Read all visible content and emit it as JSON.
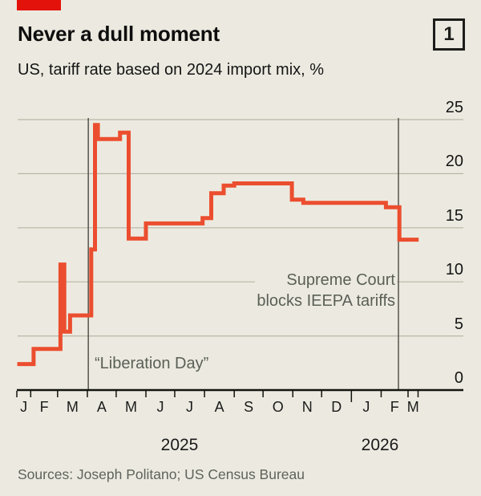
{
  "header": {
    "title": "Never a dull moment",
    "index_label": "1",
    "subtitle": "US, tariff rate based on 2024 import mix, %"
  },
  "footer": {
    "sources": "Sources: Joseph Politano; US Census Bureau"
  },
  "annotations": {
    "liberation_day": "“Liberation Day”",
    "supreme_line1": "Supreme Court",
    "supreme_line2": "blocks IEEPA tariffs"
  },
  "colors": {
    "background": "#ECEAE0",
    "brand_red": "#E3120B",
    "line_red": "#EB4E2F",
    "grid": "#b8b5a6",
    "axis": "#13130f",
    "event_line": "#55544c",
    "grey_text": "#5a5f56"
  },
  "chart_data": {
    "type": "line",
    "step": true,
    "title": "Never a dull moment",
    "subtitle": "US, tariff rate based on 2024 import mix, %",
    "ylabel": "%",
    "ylim": [
      0,
      25
    ],
    "yticks": [
      0,
      5,
      10,
      15,
      20,
      25
    ],
    "grid": "horizontal",
    "legend": false,
    "axis_side": "right",
    "x_axis": {
      "month_labels": [
        "J",
        "F",
        "M",
        "A",
        "M",
        "J",
        "J",
        "A",
        "S",
        "O",
        "N",
        "D",
        "J",
        "F",
        "M"
      ],
      "year_labels": [
        "2025",
        "2026"
      ],
      "range": [
        "2025-01-18",
        "2026-03-12"
      ]
    },
    "series": [
      {
        "name": "US tariff rate based on 2024 import mix, %",
        "segments": [
          {
            "from": "2025-01-18",
            "to": "2025-02-04",
            "value": 2.4
          },
          {
            "from": "2025-02-04",
            "to": "2025-03-04",
            "value": 3.8
          },
          {
            "from": "2025-03-04",
            "to": "2025-03-08",
            "value": 11.6
          },
          {
            "from": "2025-03-08",
            "to": "2025-03-14",
            "value": 5.4
          },
          {
            "from": "2025-03-14",
            "to": "2025-04-05",
            "value": 6.9
          },
          {
            "from": "2025-04-05",
            "to": "2025-04-09",
            "value": 13.0
          },
          {
            "from": "2025-04-09",
            "to": "2025-04-12",
            "value": 24.5
          },
          {
            "from": "2025-04-12",
            "to": "2025-05-05",
            "value": 23.2
          },
          {
            "from": "2025-05-05",
            "to": "2025-05-14",
            "value": 23.8
          },
          {
            "from": "2025-05-14",
            "to": "2025-06-01",
            "value": 14.0
          },
          {
            "from": "2025-06-01",
            "to": "2025-07-30",
            "value": 15.4
          },
          {
            "from": "2025-07-30",
            "to": "2025-08-08",
            "value": 15.9
          },
          {
            "from": "2025-08-08",
            "to": "2025-08-21",
            "value": 18.2
          },
          {
            "from": "2025-08-21",
            "to": "2025-09-01",
            "value": 18.9
          },
          {
            "from": "2025-09-01",
            "to": "2025-10-31",
            "value": 19.1
          },
          {
            "from": "2025-10-31",
            "to": "2025-11-12",
            "value": 17.6
          },
          {
            "from": "2025-11-12",
            "to": "2026-02-06",
            "value": 17.3
          },
          {
            "from": "2026-02-06",
            "to": "2026-02-20",
            "value": 16.9
          },
          {
            "from": "2026-02-20",
            "to": "2026-03-12",
            "value": 13.9
          }
        ]
      }
    ],
    "events": [
      {
        "date": "2025-04-02",
        "label": "“Liberation Day”"
      },
      {
        "date": "2026-02-19",
        "label": "Supreme Court blocks IEEPA tariffs"
      }
    ]
  }
}
